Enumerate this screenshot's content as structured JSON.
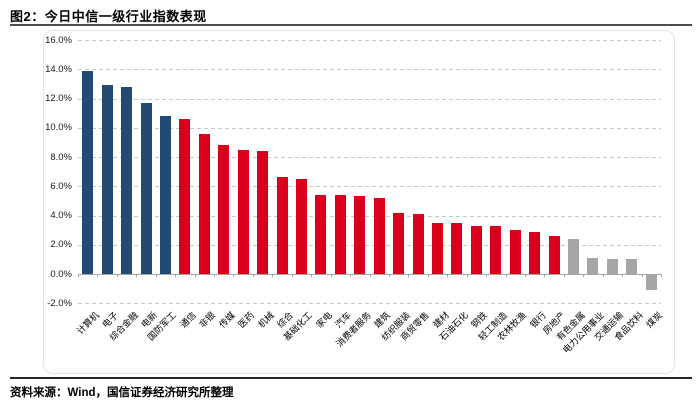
{
  "header": {
    "title": "图2：今日中信一级行业指数表现"
  },
  "footer": {
    "source_note": "资料来源：Wind，国信证券经济研究所整理"
  },
  "palette": {
    "blue": "#234B72",
    "red": "#D9001B",
    "gray": "#A6A6A6",
    "gridline": "#C9C9C9",
    "axis": "#A6A6A6"
  },
  "chart_data": {
    "type": "bar",
    "title": "今日中信一级行业指数表现",
    "xlabel": "",
    "ylabel": "",
    "ylim": [
      -2,
      16
    ],
    "y_ticks": [
      16,
      14,
      12,
      10,
      8,
      6,
      4,
      2,
      0,
      -2
    ],
    "y_tick_labels": [
      "16.0%",
      "14.0%",
      "12.0%",
      "10.0%",
      "8.0%",
      "6.0%",
      "4.0%",
      "2.0%",
      "0.0%",
      "-2.0%"
    ],
    "grid": "horizontal-dashed",
    "legend": "none",
    "categories": [
      "计算机",
      "电子",
      "综合金融",
      "电新",
      "国防军工",
      "通信",
      "非银",
      "传媒",
      "医药",
      "机械",
      "综合",
      "基础化工",
      "家电",
      "汽车",
      "消费者服务",
      "建筑",
      "纺织服装",
      "商贸零售",
      "建材",
      "石油石化",
      "钢铁",
      "轻工制造",
      "农林牧渔",
      "银行",
      "房地产",
      "有色金属",
      "电力公用事业",
      "交通运输",
      "食品饮料",
      "煤炭"
    ],
    "values": [
      13.9,
      12.9,
      12.8,
      11.7,
      10.8,
      10.6,
      9.6,
      8.8,
      8.5,
      8.4,
      6.6,
      6.5,
      5.4,
      5.4,
      5.3,
      5.2,
      4.2,
      4.1,
      3.5,
      3.5,
      3.3,
      3.3,
      3.0,
      2.9,
      2.6,
      2.4,
      1.1,
      1.0,
      1.0,
      -1.0
    ],
    "bar_color_keys": [
      "blue",
      "blue",
      "blue",
      "blue",
      "blue",
      "red",
      "red",
      "red",
      "red",
      "red",
      "red",
      "red",
      "red",
      "red",
      "red",
      "red",
      "red",
      "red",
      "red",
      "red",
      "red",
      "red",
      "red",
      "red",
      "red",
      "gray",
      "gray",
      "gray",
      "gray",
      "gray"
    ]
  }
}
